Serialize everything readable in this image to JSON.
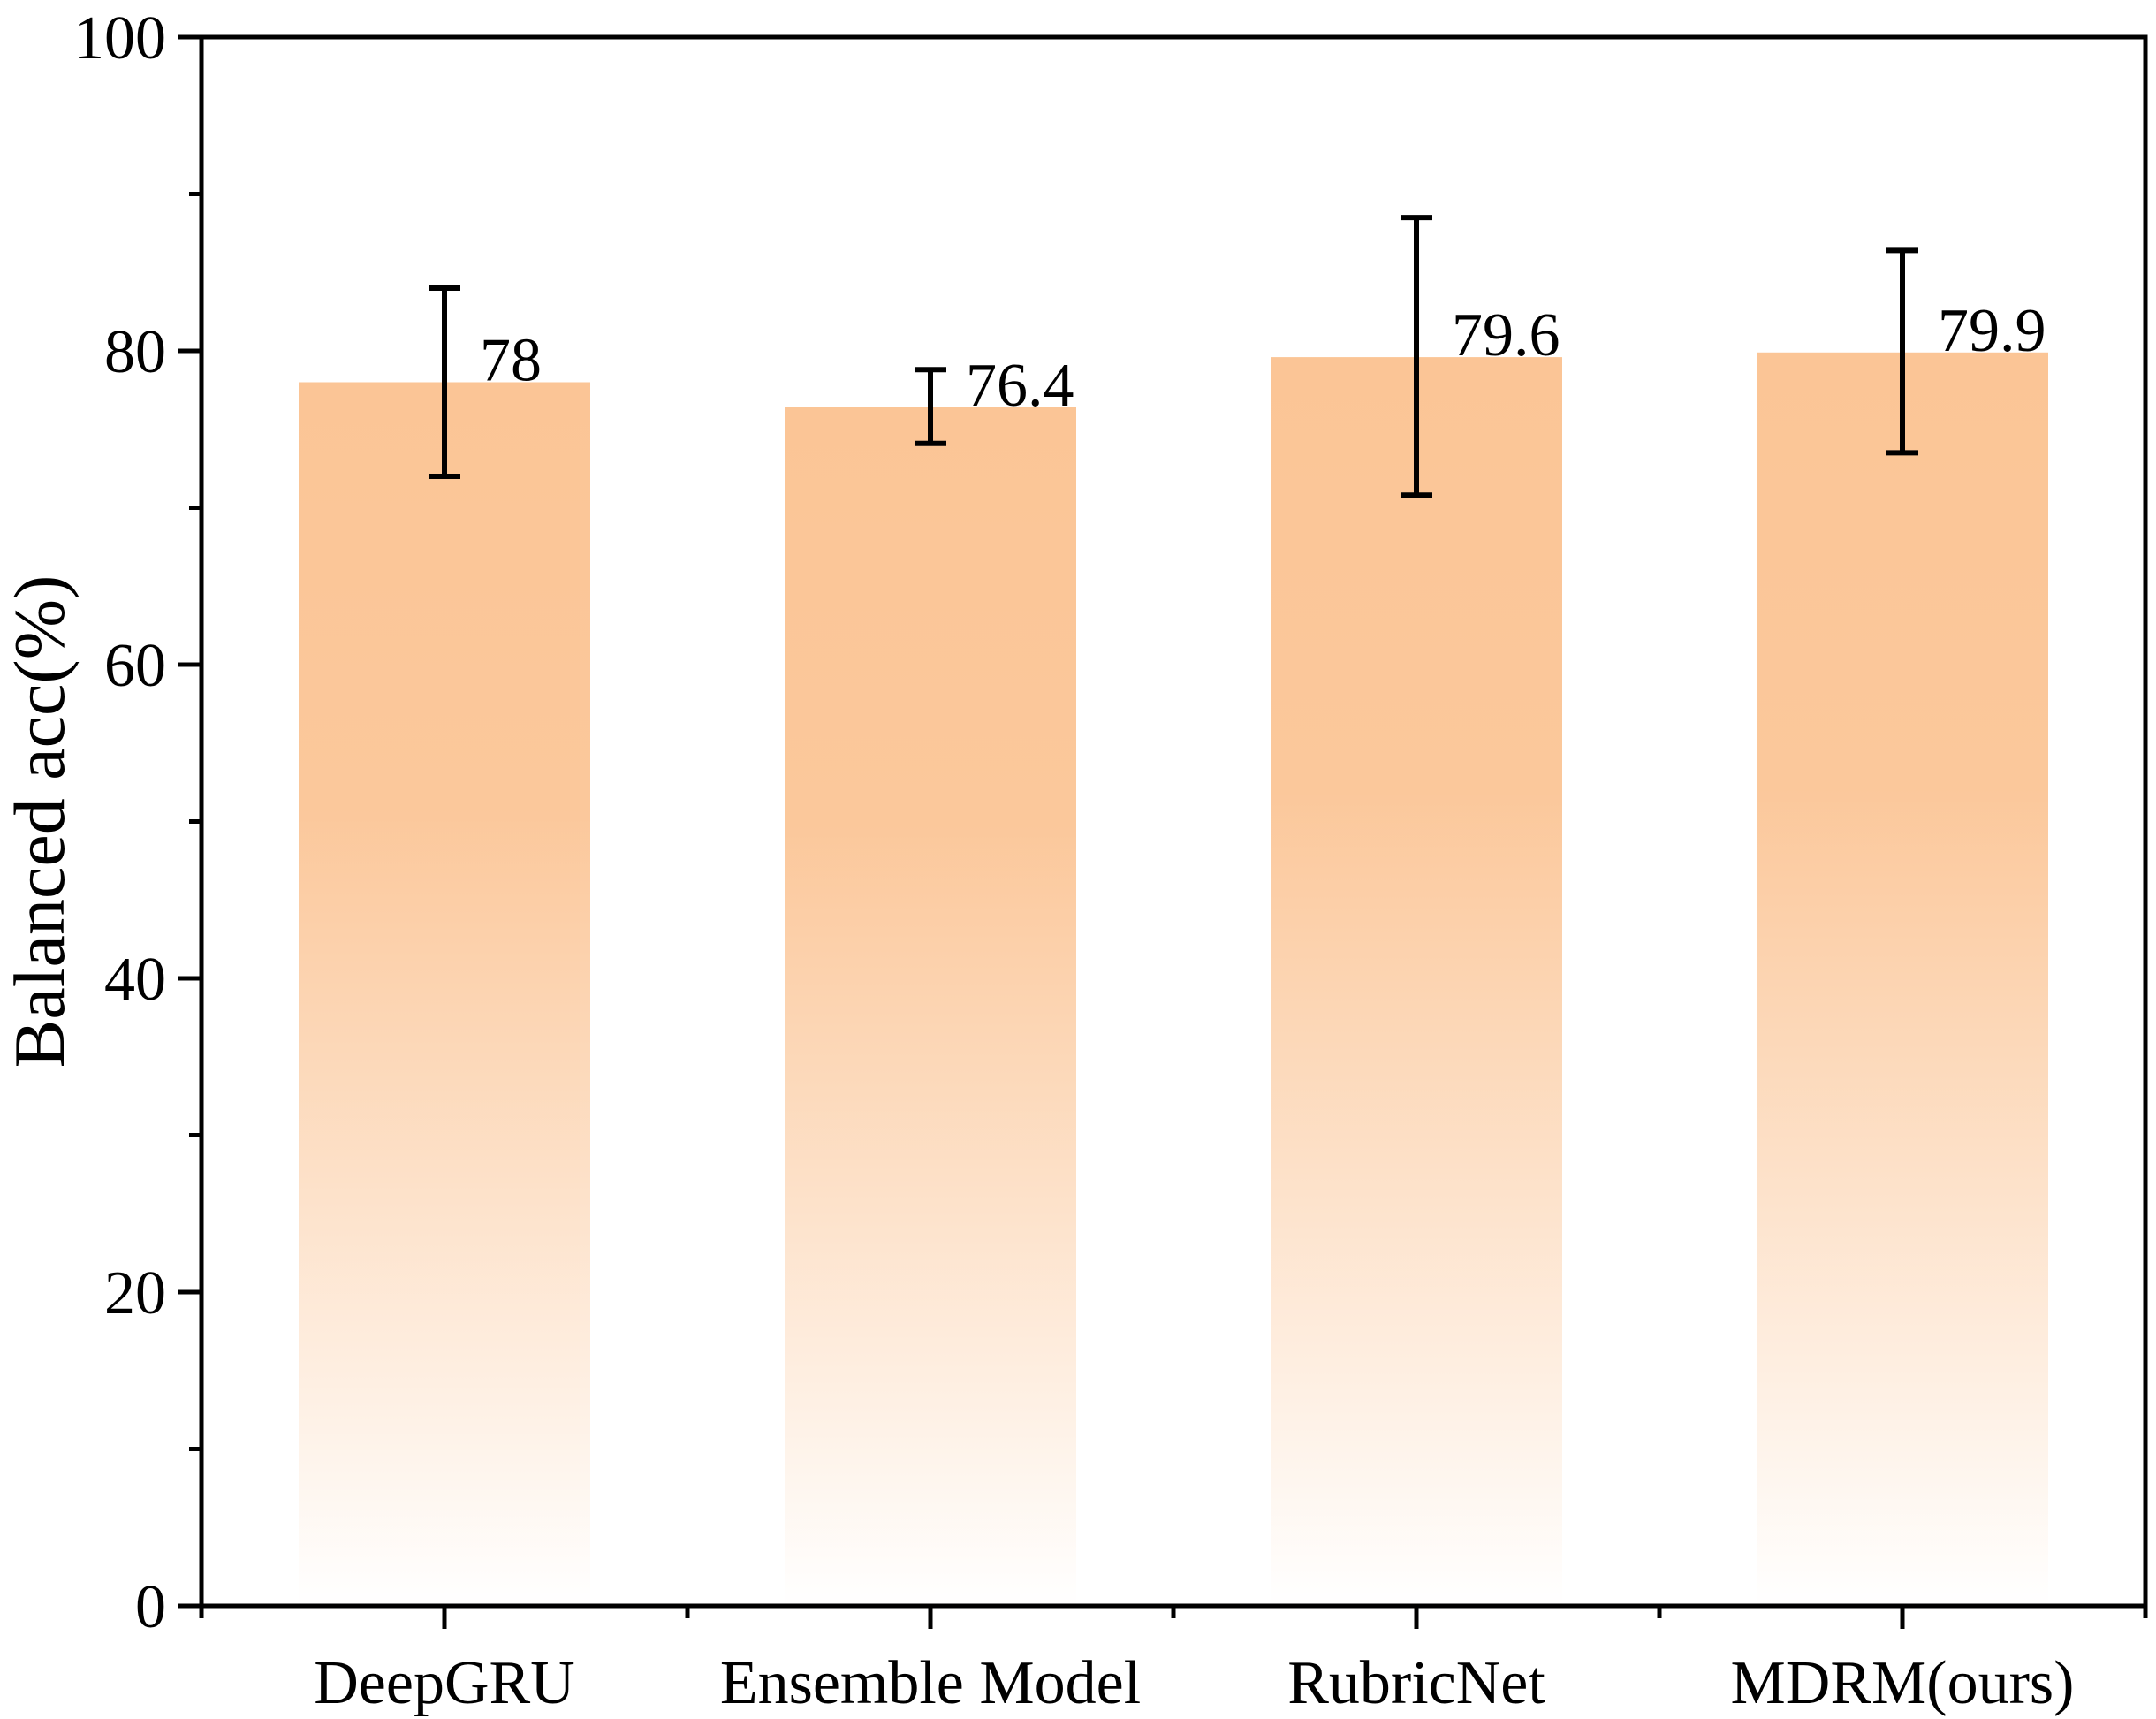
{
  "chart_data": {
    "type": "bar",
    "title": "",
    "xlabel": "",
    "ylabel": "Balanced acc(%)",
    "categories": [
      "DeepGRU",
      "Ensemble Model",
      "RubricNet",
      "MDRM(ours)"
    ],
    "values": [
      78,
      76.4,
      79.6,
      79.9
    ],
    "data_labels": [
      "78",
      "76.4",
      "79.6",
      "79.9"
    ],
    "error_bars": [
      {
        "low": 72,
        "high": 84
      },
      {
        "low": 74.1,
        "high": 78.8
      },
      {
        "low": 70.8,
        "high": 88.5
      },
      {
        "low": 73.5,
        "high": 86.4
      }
    ],
    "ylim": [
      0,
      100
    ],
    "yticks": [
      0,
      20,
      40,
      60,
      80,
      100
    ],
    "ytick_labels": [
      "0",
      "20",
      "40",
      "60",
      "80",
      "100"
    ],
    "grid": false,
    "legend": "none",
    "bar_color_top": "#fbc596",
    "bar_color_bottom": "#ffffff",
    "errorbar_color": "#000000",
    "axis_color": "#000000"
  }
}
